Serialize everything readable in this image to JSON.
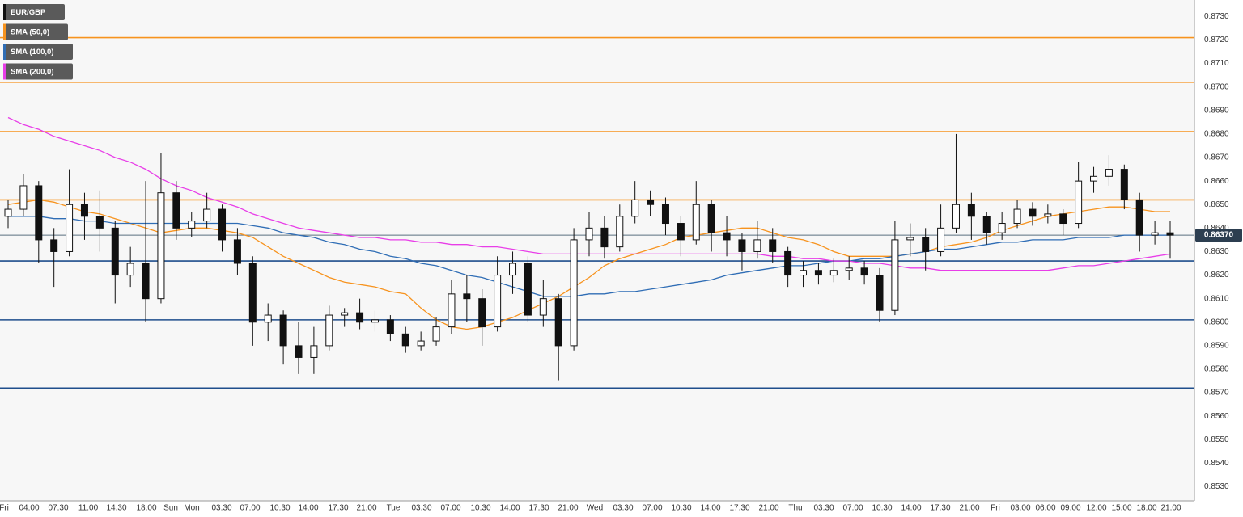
{
  "chart_data": {
    "type": "candlestick",
    "symbol": "EUR/GBP",
    "symbol_color": "#111111",
    "candles": [
      [
        0.8645,
        0.8652,
        0.864,
        0.8648
      ],
      [
        0.8648,
        0.8663,
        0.8645,
        0.8658
      ],
      [
        0.8658,
        0.866,
        0.8625,
        0.8635
      ],
      [
        0.8635,
        0.864,
        0.8615,
        0.863
      ],
      [
        0.863,
        0.8665,
        0.8628,
        0.865
      ],
      [
        0.865,
        0.8655,
        0.8635,
        0.8645
      ],
      [
        0.8645,
        0.8656,
        0.863,
        0.864
      ],
      [
        0.864,
        0.8643,
        0.8608,
        0.862
      ],
      [
        0.862,
        0.8632,
        0.8615,
        0.8625
      ],
      [
        0.8625,
        0.866,
        0.86,
        0.861
      ],
      [
        0.861,
        0.8672,
        0.8608,
        0.8655
      ],
      [
        0.8655,
        0.866,
        0.8635,
        0.864
      ],
      [
        0.864,
        0.8647,
        0.8636,
        0.8643
      ],
      [
        0.8643,
        0.8655,
        0.864,
        0.8648
      ],
      [
        0.8648,
        0.865,
        0.863,
        0.8635
      ],
      [
        0.8635,
        0.864,
        0.862,
        0.8625
      ],
      [
        0.8625,
        0.8628,
        0.859,
        0.86
      ],
      [
        0.86,
        0.8608,
        0.8592,
        0.8603
      ],
      [
        0.8603,
        0.8605,
        0.8582,
        0.859
      ],
      [
        0.859,
        0.86,
        0.8578,
        0.8585
      ],
      [
        0.8585,
        0.8598,
        0.8578,
        0.859
      ],
      [
        0.859,
        0.8607,
        0.8588,
        0.8603
      ],
      [
        0.8603,
        0.8606,
        0.8598,
        0.8604
      ],
      [
        0.8604,
        0.861,
        0.8597,
        0.86
      ],
      [
        0.86,
        0.8605,
        0.8596,
        0.8601
      ],
      [
        0.8601,
        0.8603,
        0.8592,
        0.8595
      ],
      [
        0.8595,
        0.8598,
        0.8587,
        0.859
      ],
      [
        0.859,
        0.8596,
        0.8588,
        0.8592
      ],
      [
        0.8592,
        0.8602,
        0.859,
        0.8598
      ],
      [
        0.8598,
        0.8618,
        0.8595,
        0.8612
      ],
      [
        0.8612,
        0.862,
        0.86,
        0.861
      ],
      [
        0.861,
        0.8614,
        0.859,
        0.8598
      ],
      [
        0.8598,
        0.8628,
        0.8596,
        0.862
      ],
      [
        0.862,
        0.863,
        0.8612,
        0.8625
      ],
      [
        0.8625,
        0.8628,
        0.86,
        0.8603
      ],
      [
        0.8603,
        0.8618,
        0.8598,
        0.861
      ],
      [
        0.861,
        0.8612,
        0.8575,
        0.859
      ],
      [
        0.859,
        0.864,
        0.8588,
        0.8635
      ],
      [
        0.8635,
        0.8647,
        0.8628,
        0.864
      ],
      [
        0.864,
        0.8645,
        0.8627,
        0.8632
      ],
      [
        0.8632,
        0.865,
        0.863,
        0.8645
      ],
      [
        0.8645,
        0.866,
        0.8642,
        0.8652
      ],
      [
        0.8652,
        0.8656,
        0.8645,
        0.865
      ],
      [
        0.865,
        0.8653,
        0.8637,
        0.8642
      ],
      [
        0.8642,
        0.8645,
        0.8628,
        0.8635
      ],
      [
        0.8635,
        0.866,
        0.8633,
        0.865
      ],
      [
        0.865,
        0.8652,
        0.863,
        0.8638
      ],
      [
        0.8638,
        0.8645,
        0.8628,
        0.8635
      ],
      [
        0.8635,
        0.8638,
        0.8622,
        0.863
      ],
      [
        0.863,
        0.8643,
        0.8627,
        0.8635
      ],
      [
        0.8635,
        0.864,
        0.8625,
        0.863
      ],
      [
        0.863,
        0.8632,
        0.8615,
        0.862
      ],
      [
        0.862,
        0.8626,
        0.8615,
        0.8622
      ],
      [
        0.8622,
        0.8625,
        0.8616,
        0.862
      ],
      [
        0.862,
        0.8627,
        0.8617,
        0.8622
      ],
      [
        0.8622,
        0.8628,
        0.8618,
        0.8623
      ],
      [
        0.8623,
        0.8626,
        0.8616,
        0.862
      ],
      [
        0.862,
        0.8623,
        0.86,
        0.8605
      ],
      [
        0.8605,
        0.8643,
        0.8603,
        0.8635
      ],
      [
        0.8635,
        0.8642,
        0.8628,
        0.8636
      ],
      [
        0.8636,
        0.864,
        0.8622,
        0.863
      ],
      [
        0.863,
        0.865,
        0.8628,
        0.864
      ],
      [
        0.864,
        0.868,
        0.8638,
        0.865
      ],
      [
        0.865,
        0.8655,
        0.8635,
        0.8645
      ],
      [
        0.8645,
        0.8647,
        0.8633,
        0.8638
      ],
      [
        0.8638,
        0.8647,
        0.8635,
        0.8642
      ],
      [
        0.8642,
        0.8652,
        0.864,
        0.8648
      ],
      [
        0.8648,
        0.8651,
        0.8641,
        0.8645
      ],
      [
        0.8645,
        0.865,
        0.8642,
        0.8646
      ],
      [
        0.8646,
        0.8648,
        0.8637,
        0.8642
      ],
      [
        0.8642,
        0.8668,
        0.864,
        0.866
      ],
      [
        0.866,
        0.8666,
        0.8655,
        0.8662
      ],
      [
        0.8662,
        0.8671,
        0.8658,
        0.8665
      ],
      [
        0.8665,
        0.8667,
        0.8648,
        0.8652
      ],
      [
        0.8652,
        0.8655,
        0.863,
        0.8637
      ],
      [
        0.8637,
        0.8643,
        0.8633,
        0.8638
      ],
      [
        0.8638,
        0.8643,
        0.8627,
        0.8637
      ]
    ],
    "series": [
      {
        "name": "SMA (50,0)",
        "color": "#f7931e",
        "values": [
          0.865,
          0.8651,
          0.8652,
          0.8651,
          0.8649,
          0.8647,
          0.8646,
          0.8644,
          0.8642,
          0.864,
          0.8638,
          0.8639,
          0.864,
          0.864,
          0.8639,
          0.8638,
          0.8636,
          0.8632,
          0.8628,
          0.8625,
          0.8622,
          0.8619,
          0.8617,
          0.8616,
          0.8615,
          0.8613,
          0.8612,
          0.8606,
          0.8601,
          0.8598,
          0.8597,
          0.8598,
          0.86,
          0.8602,
          0.8605,
          0.8608,
          0.8611,
          0.8615,
          0.8619,
          0.8624,
          0.8627,
          0.8629,
          0.8631,
          0.8633,
          0.8636,
          0.8637,
          0.8638,
          0.8639,
          0.864,
          0.864,
          0.8638,
          0.8636,
          0.8635,
          0.8633,
          0.863,
          0.8628,
          0.8628,
          0.8628,
          0.8628,
          0.8629,
          0.863,
          0.8632,
          0.8633,
          0.8634,
          0.8636,
          0.8639,
          0.8641,
          0.8643,
          0.8645,
          0.8646,
          0.8647,
          0.8648,
          0.8649,
          0.8649,
          0.8648,
          0.8647,
          0.8647
        ]
      },
      {
        "name": "SMA (100,0)",
        "color": "#2f6db5",
        "values": [
          0.8645,
          0.8645,
          0.8645,
          0.8644,
          0.8644,
          0.8643,
          0.8643,
          0.8642,
          0.8642,
          0.8642,
          0.8642,
          0.8642,
          0.8642,
          0.8642,
          0.8642,
          0.8642,
          0.8641,
          0.864,
          0.8638,
          0.8637,
          0.8636,
          0.8634,
          0.8633,
          0.8631,
          0.863,
          0.8628,
          0.8627,
          0.8625,
          0.8624,
          0.8622,
          0.862,
          0.8619,
          0.8617,
          0.8615,
          0.8613,
          0.8611,
          0.8611,
          0.8611,
          0.8612,
          0.8612,
          0.8613,
          0.8613,
          0.8614,
          0.8615,
          0.8616,
          0.8617,
          0.8618,
          0.862,
          0.8621,
          0.8622,
          0.8623,
          0.8624,
          0.8624,
          0.8625,
          0.8626,
          0.8626,
          0.8627,
          0.8627,
          0.8628,
          0.8629,
          0.863,
          0.8631,
          0.8631,
          0.8632,
          0.8633,
          0.8634,
          0.8634,
          0.8635,
          0.8635,
          0.8635,
          0.8636,
          0.8636,
          0.8636,
          0.8637,
          0.8637,
          0.8637,
          0.8637
        ]
      },
      {
        "name": "SMA (200,0)",
        "color": "#e83ee8",
        "values": [
          0.8687,
          0.8684,
          0.8682,
          0.8679,
          0.8677,
          0.8675,
          0.8673,
          0.867,
          0.8668,
          0.8665,
          0.8661,
          0.8658,
          0.8656,
          0.8653,
          0.8651,
          0.8649,
          0.8646,
          0.8644,
          0.8642,
          0.864,
          0.8639,
          0.8638,
          0.8637,
          0.8636,
          0.8636,
          0.8635,
          0.8635,
          0.8634,
          0.8634,
          0.8633,
          0.8633,
          0.8632,
          0.8632,
          0.8631,
          0.863,
          0.8629,
          0.8629,
          0.8629,
          0.8629,
          0.8629,
          0.8629,
          0.8629,
          0.8629,
          0.8629,
          0.8629,
          0.8629,
          0.8629,
          0.8629,
          0.8629,
          0.8629,
          0.8628,
          0.8628,
          0.8627,
          0.8627,
          0.8626,
          0.8626,
          0.8625,
          0.8625,
          0.8624,
          0.8623,
          0.8623,
          0.8622,
          0.8622,
          0.8622,
          0.8622,
          0.8622,
          0.8622,
          0.8622,
          0.8622,
          0.8623,
          0.8624,
          0.8624,
          0.8625,
          0.8626,
          0.8627,
          0.8628,
          0.8629
        ]
      }
    ],
    "hlines": [
      {
        "value": 0.8721,
        "color": "#f7931e"
      },
      {
        "value": 0.8702,
        "color": "#f7931e"
      },
      {
        "value": 0.8681,
        "color": "#f7931e"
      },
      {
        "value": 0.8652,
        "color": "#f7931e"
      },
      {
        "value": 0.8626,
        "color": "#1f4e8c"
      },
      {
        "value": 0.8601,
        "color": "#1f4e8c"
      },
      {
        "value": 0.8572,
        "color": "#1f4e8c"
      }
    ],
    "last_price": {
      "value": 0.8637,
      "label": "0.86370"
    },
    "ylim": [
      0.8524,
      0.8737
    ],
    "yticks": [
      {
        "value": 0.873,
        "label": "0.8730"
      },
      {
        "value": 0.872,
        "label": "0.8720"
      },
      {
        "value": 0.871,
        "label": "0.8710"
      },
      {
        "value": 0.87,
        "label": "0.8700"
      },
      {
        "value": 0.869,
        "label": "0.8690"
      },
      {
        "value": 0.868,
        "label": "0.8680"
      },
      {
        "value": 0.867,
        "label": "0.8670"
      },
      {
        "value": 0.866,
        "label": "0.8660"
      },
      {
        "value": 0.865,
        "label": "0.8650"
      },
      {
        "value": 0.864,
        "label": "0.8640"
      },
      {
        "value": 0.863,
        "label": "0.8630"
      },
      {
        "value": 0.862,
        "label": "0.8620"
      },
      {
        "value": 0.861,
        "label": "0.8610"
      },
      {
        "value": 0.86,
        "label": "0.8600"
      },
      {
        "value": 0.859,
        "label": "0.8590"
      },
      {
        "value": 0.858,
        "label": "0.8580"
      },
      {
        "value": 0.857,
        "label": "0.8570"
      },
      {
        "value": 0.856,
        "label": "0.8560"
      },
      {
        "value": 0.855,
        "label": "0.8550"
      },
      {
        "value": 0.854,
        "label": "0.8540"
      },
      {
        "value": 0.853,
        "label": "0.8530"
      }
    ],
    "x_labels": [
      "Fri",
      "04:00",
      "07:30",
      "11:00",
      "14:30",
      "18:00",
      "Sun",
      "Mon",
      "03:30",
      "07:00",
      "10:30",
      "14:00",
      "17:30",
      "21:00",
      "Tue",
      "03:30",
      "07:00",
      "10:30",
      "14:00",
      "17:30",
      "21:00",
      "Wed",
      "03:30",
      "07:00",
      "10:30",
      "14:00",
      "17:30",
      "21:00",
      "Thu",
      "03:30",
      "07:00",
      "10:30",
      "14:00",
      "17:30",
      "21:00",
      "Fri",
      "03:00",
      "06:00",
      "09:00",
      "12:00",
      "15:00",
      "18:00",
      "21:00"
    ],
    "grid": true
  }
}
